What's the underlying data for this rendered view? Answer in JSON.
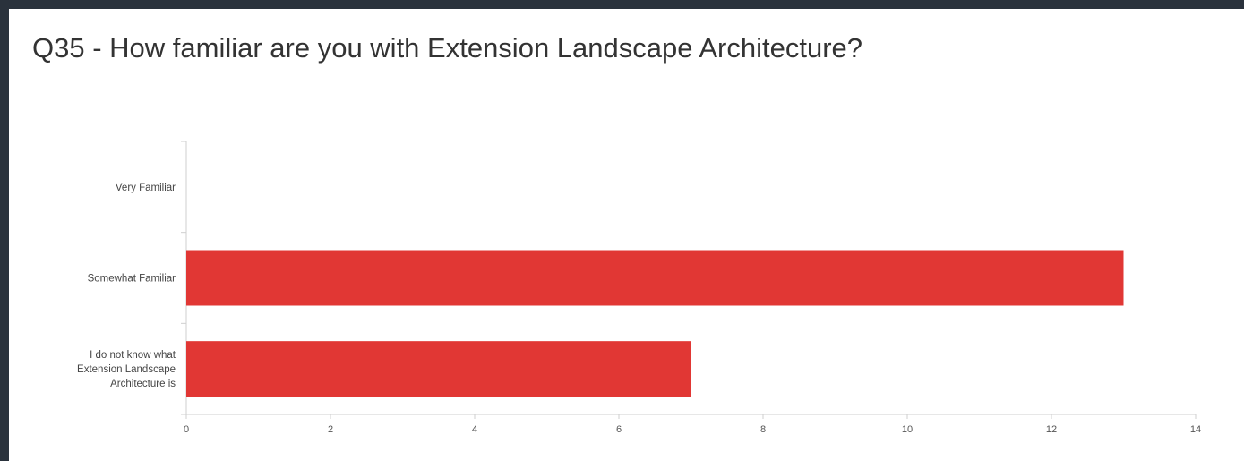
{
  "title": "Q35 - How familiar are you with Extension Landscape Architecture?",
  "colors": {
    "bar": "#e13734",
    "background": "#2a323c",
    "panel": "#ffffff"
  },
  "chart_data": {
    "type": "bar",
    "orientation": "horizontal",
    "title": "Q35 - How familiar are you with Extension Landscape Architecture?",
    "categories": [
      [
        "Very Familiar"
      ],
      [
        "Somewhat Familiar"
      ],
      [
        "I do not know what",
        "Extension Landscape",
        "Architecture is"
      ]
    ],
    "values": [
      0,
      13,
      7
    ],
    "xlim": [
      0,
      14
    ],
    "xticks": [
      0,
      2,
      4,
      6,
      8,
      10,
      12,
      14
    ],
    "xlabel": "",
    "ylabel": "",
    "grid": false,
    "legend": "none"
  }
}
